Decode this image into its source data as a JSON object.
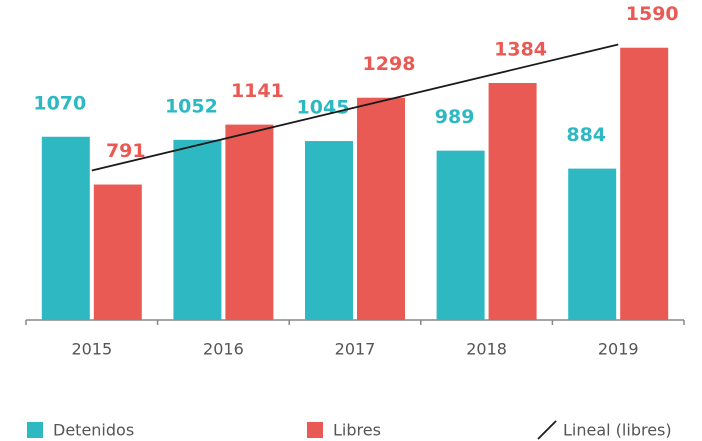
{
  "chart_data": {
    "type": "bar",
    "categories": [
      "2015",
      "2016",
      "2017",
      "2018",
      "2019"
    ],
    "series": [
      {
        "name": "Detenidos",
        "color": "#2eb9c2",
        "values": [
          1070,
          1052,
          1045,
          989,
          884
        ]
      },
      {
        "name": "Libres",
        "color": "#e95a55",
        "values": [
          791,
          1141,
          1298,
          1384,
          1590
        ]
      },
      {
        "name": "Lineal (libres)",
        "type": "line",
        "color": "#1a1a1a",
        "values": [
          873,
          1057,
          1241,
          1425,
          1609
        ]
      }
    ],
    "ylim": [
      0,
      1600
    ]
  }
}
